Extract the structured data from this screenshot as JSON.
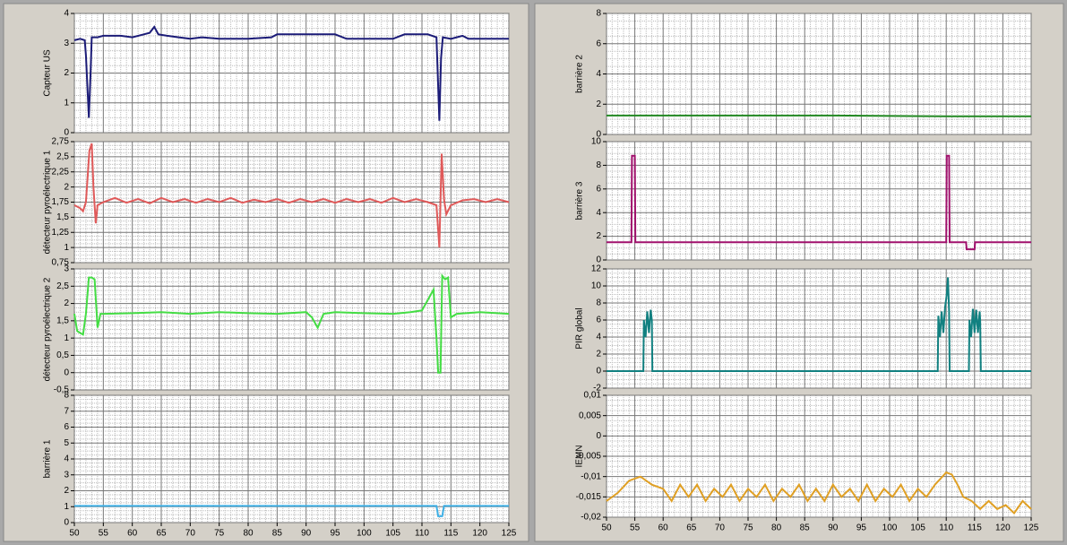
{
  "chart_data": [
    {
      "type": "line",
      "ylabel": "Capteur US",
      "xlim": [
        50,
        125
      ],
      "ylim": [
        0,
        4
      ],
      "yticks": [
        0,
        1,
        2,
        3,
        4
      ],
      "grid": true,
      "series": [
        {
          "color": "#1c1c78",
          "x": [
            50,
            51,
            51.8,
            52,
            52.5,
            52.8,
            53,
            54,
            55,
            58,
            60,
            62,
            63,
            63.8,
            64.5,
            66,
            68,
            70,
            72,
            75,
            80,
            84,
            85,
            90,
            95,
            97,
            100,
            105,
            107,
            111,
            112.5,
            113,
            113.3,
            113.6,
            115,
            117,
            118,
            120,
            125
          ],
          "values": [
            3.1,
            3.15,
            3.1,
            2.6,
            0.5,
            2.0,
            3.2,
            3.2,
            3.25,
            3.25,
            3.2,
            3.3,
            3.35,
            3.55,
            3.3,
            3.25,
            3.2,
            3.15,
            3.2,
            3.15,
            3.15,
            3.2,
            3.3,
            3.3,
            3.3,
            3.15,
            3.15,
            3.15,
            3.3,
            3.3,
            3.2,
            0.4,
            2.5,
            3.2,
            3.15,
            3.25,
            3.15,
            3.15,
            3.15
          ]
        }
      ]
    },
    {
      "type": "line",
      "ylabel": "détecteur pyroélectrique 1",
      "xlim": [
        50,
        125
      ],
      "ylim": [
        0.75,
        2.75
      ],
      "yticks": [
        {
          "value": 0.75,
          "label": "0,75"
        },
        1,
        {
          "value": 1.25,
          "label": "1,25"
        },
        {
          "value": 1.5,
          "label": "1,5"
        },
        {
          "value": 1.75,
          "label": "1,75"
        },
        2,
        {
          "value": 2.25,
          "label": "2,25"
        },
        {
          "value": 2.5,
          "label": "2,5"
        },
        {
          "value": 2.75,
          "label": "2,75"
        }
      ],
      "grid": true,
      "series": [
        {
          "color": "#e05a5a",
          "x": [
            50,
            51,
            51.5,
            52,
            52.6,
            53,
            53.3,
            53.7,
            54,
            55,
            57,
            59,
            61,
            63,
            65,
            67,
            69,
            71,
            73,
            75,
            77,
            79,
            81,
            83,
            85,
            87,
            89,
            91,
            93,
            95,
            97,
            99,
            101,
            103,
            105,
            107,
            109,
            111,
            112.5,
            113,
            113.4,
            113.8,
            114.2,
            115,
            117,
            119,
            121,
            123,
            125
          ],
          "values": [
            1.7,
            1.65,
            1.6,
            1.75,
            2.6,
            2.72,
            2.0,
            1.4,
            1.7,
            1.75,
            1.82,
            1.74,
            1.8,
            1.73,
            1.82,
            1.75,
            1.8,
            1.74,
            1.8,
            1.75,
            1.82,
            1.74,
            1.79,
            1.75,
            1.8,
            1.74,
            1.8,
            1.75,
            1.8,
            1.74,
            1.8,
            1.75,
            1.8,
            1.74,
            1.82,
            1.75,
            1.8,
            1.75,
            1.7,
            1.0,
            2.55,
            1.8,
            1.55,
            1.7,
            1.78,
            1.8,
            1.75,
            1.8,
            1.75
          ]
        }
      ]
    },
    {
      "type": "line",
      "ylabel": "détecteur pyroélectrique 2",
      "xlim": [
        50,
        125
      ],
      "ylim": [
        -0.5,
        3
      ],
      "yticks": [
        {
          "value": -0.5,
          "label": "-0,5"
        },
        0,
        {
          "value": 0.5,
          "label": "0,5"
        },
        1,
        {
          "value": 1.5,
          "label": "1,5"
        },
        2,
        {
          "value": 2.5,
          "label": "2,5"
        },
        3
      ],
      "grid": true,
      "series": [
        {
          "color": "#44dd44",
          "x": [
            50,
            50.5,
            51,
            51.5,
            52,
            52.5,
            53,
            53.5,
            54,
            54.5,
            55,
            60,
            65,
            70,
            75,
            80,
            85,
            90,
            91,
            92,
            93,
            95,
            100,
            105,
            108,
            110,
            112,
            112.5,
            112.8,
            113.2,
            113.5,
            114,
            114.5,
            115,
            116,
            120,
            125
          ],
          "values": [
            1.7,
            1.2,
            1.15,
            1.1,
            1.7,
            2.75,
            2.75,
            2.7,
            1.3,
            1.7,
            1.7,
            1.72,
            1.75,
            1.7,
            1.75,
            1.72,
            1.7,
            1.75,
            1.6,
            1.3,
            1.7,
            1.75,
            1.72,
            1.7,
            1.75,
            1.8,
            2.4,
            1.0,
            0,
            0,
            2.8,
            2.7,
            2.75,
            1.6,
            1.7,
            1.75,
            1.7
          ]
        }
      ]
    },
    {
      "type": "line",
      "ylabel": "barrière 1",
      "xlim": [
        50,
        125
      ],
      "ylim": [
        0,
        8
      ],
      "yticks": [
        0,
        1,
        2,
        3,
        4,
        5,
        6,
        7,
        8
      ],
      "xticks": [
        50,
        55,
        60,
        65,
        70,
        75,
        80,
        85,
        90,
        95,
        100,
        105,
        110,
        115,
        120,
        125
      ],
      "grid": true,
      "series": [
        {
          "color": "#3fb0e6",
          "x": [
            50,
            70,
            90,
            112.5,
            112.8,
            113.5,
            113.8,
            125
          ],
          "values": [
            1.05,
            1.05,
            1.05,
            1.05,
            0.4,
            0.4,
            1.05,
            1.05
          ]
        }
      ]
    },
    {
      "type": "line",
      "ylabel": "barrière 2",
      "xlim": [
        50,
        125
      ],
      "ylim": [
        0,
        8
      ],
      "yticks": [
        0,
        2,
        4,
        6,
        8
      ],
      "grid": true,
      "series": [
        {
          "color": "#228822",
          "x": [
            50,
            70,
            90,
            110,
            125
          ],
          "values": [
            1.25,
            1.25,
            1.25,
            1.2,
            1.2
          ]
        }
      ]
    },
    {
      "type": "line",
      "ylabel": "barrière 3",
      "xlim": [
        50,
        125
      ],
      "ylim": [
        0,
        10
      ],
      "yticks": [
        0,
        2,
        4,
        6,
        8,
        10
      ],
      "grid": true,
      "series": [
        {
          "color": "#a0106c",
          "x": [
            50,
            54.4,
            54.5,
            55,
            55.1,
            110,
            110.1,
            110.5,
            110.6,
            113.5,
            113.6,
            115,
            115.1,
            125
          ],
          "values": [
            1.5,
            1.5,
            8.8,
            8.8,
            1.5,
            1.5,
            8.8,
            8.8,
            1.5,
            1.5,
            0.9,
            0.9,
            1.5,
            1.5
          ]
        }
      ]
    },
    {
      "type": "line",
      "ylabel": "PIR global",
      "xlim": [
        50,
        125
      ],
      "ylim": [
        -2,
        12
      ],
      "yticks": [
        -2,
        0,
        2,
        4,
        6,
        8,
        10,
        12
      ],
      "grid": true,
      "series": [
        {
          "color": "#118080",
          "x": [
            50,
            56.5,
            56.6,
            56.9,
            57.2,
            57.5,
            57.8,
            58,
            58.1,
            108.5,
            108.6,
            108.9,
            109.2,
            109.5,
            109.8,
            110.1,
            110.3,
            110.5,
            110.6,
            114,
            114.1,
            114.4,
            114.7,
            115,
            115.3,
            115.6,
            115.9,
            116,
            116.1,
            125
          ],
          "values": [
            0,
            0,
            6,
            4,
            7,
            4.5,
            7.2,
            6,
            0,
            0,
            6.5,
            4,
            7,
            4.5,
            7.5,
            9,
            11,
            7,
            0,
            0,
            6,
            4,
            7.3,
            4.5,
            7.2,
            4.5,
            7,
            6,
            0,
            0
          ]
        }
      ]
    },
    {
      "type": "line",
      "ylabel": "IEMN",
      "xlim": [
        50,
        125
      ],
      "ylim": [
        -0.02,
        0.01
      ],
      "yticks": [
        {
          "value": -0.02,
          "label": "-0,02"
        },
        {
          "value": -0.015,
          "label": "-0,015"
        },
        {
          "value": -0.01,
          "label": "-0,01"
        },
        {
          "value": -0.005,
          "label": "-0,005"
        },
        0,
        {
          "value": 0.005,
          "label": "0,005"
        },
        {
          "value": 0.01,
          "label": "0,01"
        }
      ],
      "xticks": [
        50,
        55,
        60,
        65,
        70,
        75,
        80,
        85,
        90,
        95,
        100,
        105,
        110,
        115,
        120,
        125
      ],
      "grid": true,
      "series": [
        {
          "color": "#e0a024",
          "x": [
            50,
            52,
            54,
            56,
            58,
            60,
            61.5,
            63,
            64.5,
            66,
            67.5,
            69,
            70.5,
            72,
            73.5,
            75,
            76.5,
            78,
            79.5,
            81,
            82.5,
            84,
            85.5,
            87,
            88.5,
            90,
            91.5,
            93,
            94.5,
            96,
            97.5,
            99,
            100.5,
            102,
            103.5,
            105,
            106.5,
            108,
            110,
            111,
            112,
            113,
            114.5,
            116,
            117.5,
            119,
            120.5,
            122,
            123.5,
            125
          ],
          "values": [
            -0.016,
            -0.014,
            -0.011,
            -0.01,
            -0.012,
            -0.013,
            -0.016,
            -0.012,
            -0.015,
            -0.012,
            -0.016,
            -0.013,
            -0.015,
            -0.012,
            -0.016,
            -0.013,
            -0.015,
            -0.012,
            -0.016,
            -0.013,
            -0.015,
            -0.012,
            -0.016,
            -0.013,
            -0.016,
            -0.012,
            -0.015,
            -0.013,
            -0.016,
            -0.012,
            -0.016,
            -0.013,
            -0.015,
            -0.012,
            -0.016,
            -0.013,
            -0.015,
            -0.012,
            -0.009,
            -0.0095,
            -0.012,
            -0.015,
            -0.016,
            -0.018,
            -0.016,
            -0.018,
            -0.017,
            -0.019,
            -0.016,
            -0.018
          ]
        }
      ]
    }
  ]
}
